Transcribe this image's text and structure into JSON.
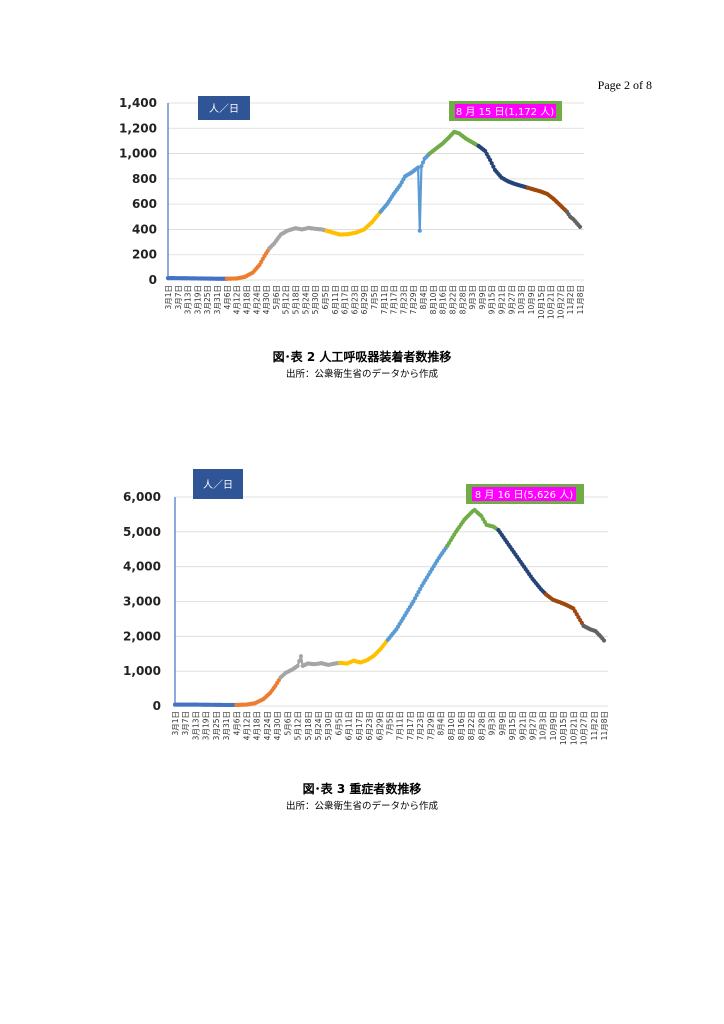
{
  "page_label": "Page 2 of 8",
  "chart_data": [
    {
      "type": "line",
      "unit_label": "人／日",
      "callout": "8 月 15 日(1,172 人)",
      "y_ticks": [
        "1,400",
        "1,200",
        "1,000",
        "800",
        "600",
        "400",
        "200",
        "0"
      ],
      "ylim": [
        0,
        1400
      ],
      "x_tick_labels": [
        "3月1日",
        "3月7日",
        "3月13日",
        "3月19日",
        "3月25日",
        "3月31日",
        "4月6日",
        "4月12日",
        "4月18日",
        "4月24日",
        "4月30日",
        "5月6日",
        "5月12日",
        "5月18日",
        "5月24日",
        "5月30日",
        "6月5日",
        "6月11日",
        "6月17日",
        "6月23日",
        "6月29日",
        "7月5日",
        "7月11日",
        "7月17日",
        "7月23日",
        "7月29日",
        "8月4日",
        "8月10日",
        "8月16日",
        "8月22日",
        "8月28日",
        "9月3日",
        "9月9日",
        "9月15日",
        "9月21日",
        "9月27日",
        "10月3日",
        "10月9日",
        "10月15日",
        "10月21日",
        "10月27日",
        "11月2日",
        "11月8日"
      ],
      "x_range_days": [
        0,
        252
      ],
      "series": [
        {
          "color": "#4472c4",
          "points": [
            [
              0,
              15
            ],
            [
              10,
              14
            ],
            [
              20,
              12
            ],
            [
              30,
              10
            ],
            [
              36,
              10
            ]
          ]
        },
        {
          "color": "#ed7d31",
          "points": [
            [
              36,
              10
            ],
            [
              42,
              12
            ],
            [
              47,
              25
            ],
            [
              52,
              60
            ],
            [
              56,
              120
            ],
            [
              59,
              190
            ],
            [
              62,
              250
            ]
          ]
        },
        {
          "color": "#a5a5a5",
          "points": [
            [
              62,
              250
            ],
            [
              65,
              290
            ],
            [
              69,
              360
            ],
            [
              73,
              390
            ],
            [
              78,
              410
            ],
            [
              82,
              400
            ],
            [
              86,
              412
            ],
            [
              90,
              405
            ],
            [
              94,
              400
            ],
            [
              97,
              390
            ]
          ]
        },
        {
          "color": "#ffc000",
          "points": [
            [
              97,
              390
            ],
            [
              101,
              375
            ],
            [
              105,
              360
            ],
            [
              110,
              362
            ],
            [
              115,
              375
            ],
            [
              120,
              400
            ],
            [
              125,
              460
            ],
            [
              130,
              540
            ]
          ]
        },
        {
          "color": "#5b9bd5",
          "points": [
            [
              130,
              540
            ],
            [
              134,
              600
            ],
            [
              138,
              680
            ],
            [
              142,
              750
            ],
            [
              145,
              820
            ],
            [
              149,
              850
            ],
            [
              151,
              870
            ],
            [
              153,
              890
            ],
            [
              154,
              390
            ],
            [
              155,
              900
            ],
            [
              157,
              960
            ],
            [
              160,
              1000
            ]
          ]
        },
        {
          "color": "#70ad47",
          "points": [
            [
              160,
              1000
            ],
            [
              164,
              1040
            ],
            [
              168,
              1080
            ],
            [
              172,
              1130
            ],
            [
              175,
              1172
            ],
            [
              178,
              1160
            ],
            [
              182,
              1120
            ],
            [
              186,
              1090
            ],
            [
              190,
              1060
            ]
          ]
        },
        {
          "color": "#264478",
          "points": [
            [
              190,
              1060
            ],
            [
              194,
              1020
            ],
            [
              197,
              950
            ],
            [
              200,
              870
            ],
            [
              204,
              810
            ],
            [
              208,
              780
            ],
            [
              212,
              760
            ],
            [
              216,
              745
            ],
            [
              220,
              730
            ]
          ]
        },
        {
          "color": "#9e480e",
          "points": [
            [
              220,
              730
            ],
            [
              224,
              715
            ],
            [
              228,
              700
            ],
            [
              232,
              680
            ],
            [
              236,
              640
            ],
            [
              240,
              590
            ],
            [
              244,
              540
            ]
          ]
        },
        {
          "color": "#636363",
          "points": [
            [
              244,
              540
            ],
            [
              246,
              500
            ],
            [
              248,
              480
            ],
            [
              250,
              450
            ],
            [
              252,
              420
            ]
          ]
        }
      ]
    },
    {
      "type": "line",
      "unit_label": "人／日",
      "callout": "8 月 16 日(5,626 人)",
      "y_ticks": [
        "6,000",
        "5,000",
        "4,000",
        "3,000",
        "2,000",
        "1,000",
        "0"
      ],
      "ylim": [
        0,
        6000
      ],
      "x_tick_labels": [
        "3月1日",
        "3月7日",
        "3月13日",
        "3月19日",
        "3月25日",
        "3月31日",
        "4月6日",
        "4月12日",
        "4月18日",
        "4月24日",
        "4月30日",
        "5月6日",
        "5月12日",
        "5月18日",
        "5月24日",
        "5月30日",
        "6月5日",
        "6月11日",
        "6月17日",
        "6月23日",
        "6月29日",
        "7月5日",
        "7月11日",
        "7月17日",
        "7月23日",
        "7月29日",
        "8月4日",
        "8月10日",
        "8月16日",
        "8月22日",
        "8月28日",
        "9月3日",
        "9月9日",
        "9月15日",
        "9月21日",
        "9月27日",
        "10月3日",
        "10月9日",
        "10月15日",
        "10月21日",
        "10月27日",
        "11月2日",
        "11月8日"
      ],
      "x_range_days": [
        0,
        252
      ],
      "series": [
        {
          "color": "#4472c4",
          "points": [
            [
              0,
              40
            ],
            [
              10,
              40
            ],
            [
              20,
              35
            ],
            [
              30,
              30
            ],
            [
              36,
              30
            ]
          ]
        },
        {
          "color": "#ed7d31",
          "points": [
            [
              36,
              30
            ],
            [
              42,
              40
            ],
            [
              47,
              80
            ],
            [
              52,
              200
            ],
            [
              56,
              380
            ],
            [
              59,
              580
            ],
            [
              62,
              820
            ]
          ]
        },
        {
          "color": "#a5a5a5",
          "points": [
            [
              62,
              820
            ],
            [
              65,
              950
            ],
            [
              69,
              1050
            ],
            [
              72,
              1150
            ],
            [
              74,
              1430
            ],
            [
              75,
              1150
            ],
            [
              78,
              1220
            ],
            [
              82,
              1200
            ],
            [
              86,
              1230
            ],
            [
              90,
              1180
            ],
            [
              94,
              1220
            ],
            [
              97,
              1240
            ]
          ]
        },
        {
          "color": "#ffc000",
          "points": [
            [
              97,
              1240
            ],
            [
              101,
              1220
            ],
            [
              105,
              1300
            ],
            [
              109,
              1250
            ],
            [
              113,
              1320
            ],
            [
              117,
              1450
            ],
            [
              121,
              1650
            ],
            [
              125,
              1900
            ]
          ]
        },
        {
          "color": "#5b9bd5",
          "points": [
            [
              125,
              1900
            ],
            [
              130,
              2200
            ],
            [
              135,
              2600
            ],
            [
              140,
              3000
            ],
            [
              145,
              3450
            ],
            [
              150,
              3850
            ],
            [
              155,
              4250
            ],
            [
              160,
              4600
            ]
          ]
        },
        {
          "color": "#70ad47",
          "points": [
            [
              160,
              4600
            ],
            [
              165,
              5000
            ],
            [
              170,
              5350
            ],
            [
              175,
              5600
            ],
            [
              176,
              5626
            ],
            [
              180,
              5450
            ],
            [
              183,
              5200
            ],
            [
              187,
              5150
            ],
            [
              190,
              5050
            ]
          ]
        },
        {
          "color": "#264478",
          "points": [
            [
              190,
              5050
            ],
            [
              195,
              4700
            ],
            [
              200,
              4350
            ],
            [
              205,
              4000
            ],
            [
              210,
              3650
            ],
            [
              215,
              3350
            ],
            [
              218,
              3200
            ]
          ]
        },
        {
          "color": "#9e480e",
          "points": [
            [
              218,
              3200
            ],
            [
              222,
              3050
            ],
            [
              226,
              2980
            ],
            [
              230,
              2900
            ],
            [
              234,
              2800
            ],
            [
              237,
              2550
            ],
            [
              240,
              2300
            ]
          ]
        },
        {
          "color": "#636363",
          "points": [
            [
              240,
              2300
            ],
            [
              244,
              2200
            ],
            [
              247,
              2150
            ],
            [
              250,
              2000
            ],
            [
              252,
              1880
            ]
          ]
        }
      ]
    }
  ],
  "captions": [
    {
      "title": "図･表 2 人工呼吸器装着者数推移",
      "source": "出所：公衆衛生省のデータから作成"
    },
    {
      "title": "図･表 3 重症者数推移",
      "source": "出所：公衆衛生省のデータから作成"
    }
  ]
}
